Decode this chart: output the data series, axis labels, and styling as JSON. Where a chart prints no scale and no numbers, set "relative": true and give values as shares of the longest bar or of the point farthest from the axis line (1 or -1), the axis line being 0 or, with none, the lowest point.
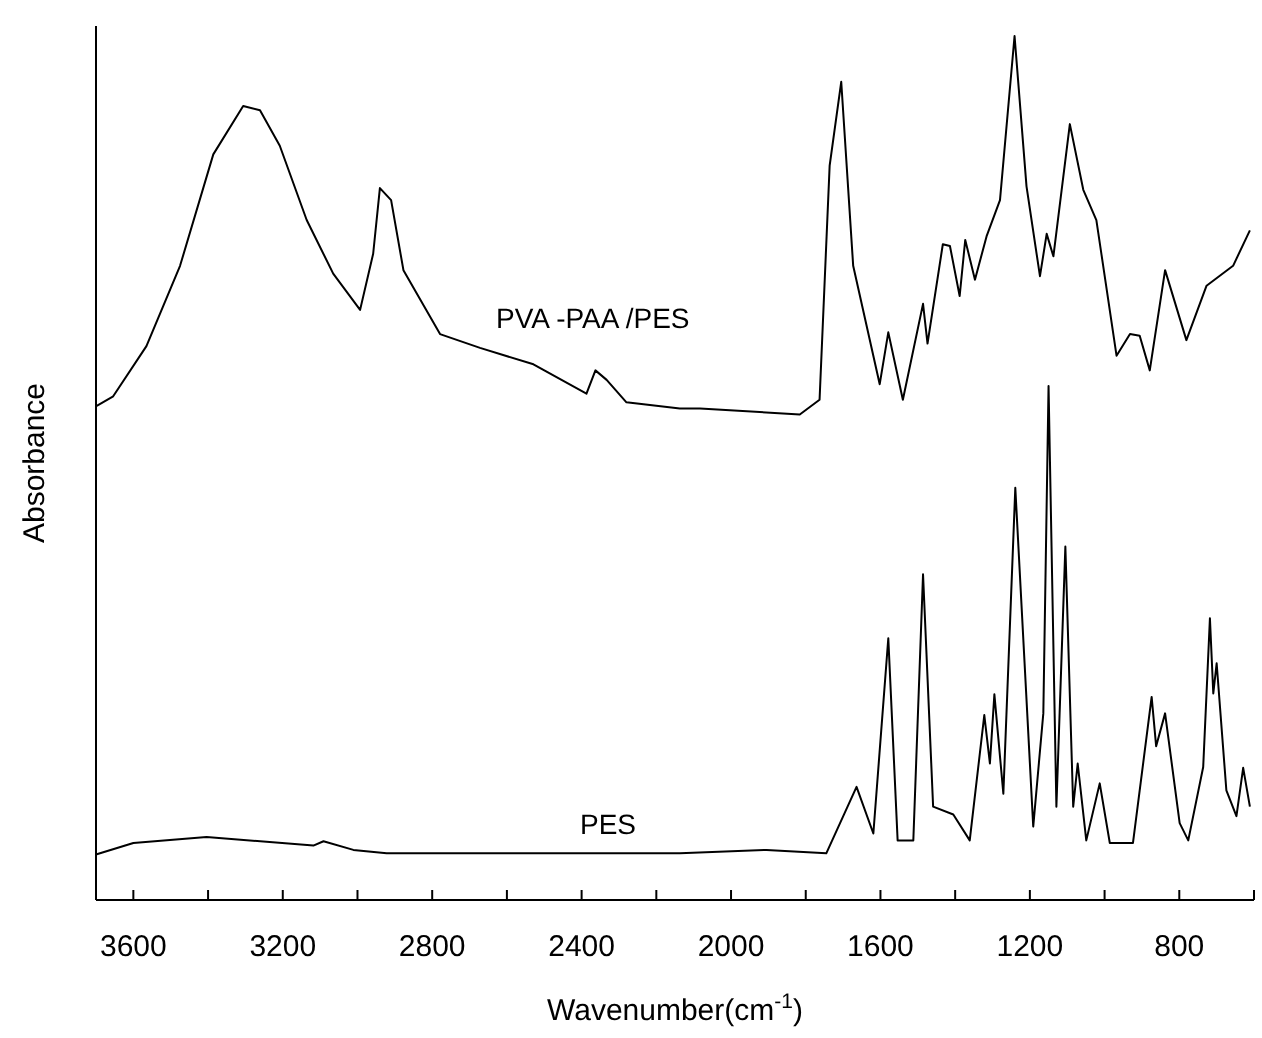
{
  "chart_data": {
    "type": "line",
    "relative": true,
    "xlabel": "Wavenumber(cm$^{-1}$)",
    "ylabel": "Absorbance",
    "xlim": [
      3700,
      600
    ],
    "xticks": [
      3600,
      {
        "value": 3400,
        "label": null
      },
      3200,
      {
        "value": 3000,
        "label": null
      },
      2800,
      {
        "value": 2600,
        "label": null
      },
      2400,
      {
        "value": 2200,
        "label": null
      },
      2000,
      {
        "value": 1800,
        "label": null
      },
      1600,
      {
        "value": 1400,
        "label": null
      },
      1200,
      {
        "value": 1000,
        "label": null
      },
      800,
      {
        "value": 600,
        "label": null
      }
    ],
    "grid": false,
    "marker": "none",
    "line_style": "solid",
    "series": [
      {
        "name": "PVA -PAA /PES",
        "color": "#000000",
        "x": [
          3698,
          3654,
          3565,
          3475,
          3386,
          3306,
          3261,
          3208,
          3136,
          3065,
          2993,
          2958,
          2940,
          2910,
          2877,
          2779,
          2672,
          2529,
          2387,
          2363,
          2333,
          2280,
          2137,
          2083,
          1816,
          1763,
          1736,
          1705,
          1673,
          1602,
          1579,
          1540,
          1486,
          1474,
          1433,
          1414,
          1388,
          1373,
          1347,
          1316,
          1280,
          1241,
          1209,
          1173,
          1155,
          1137,
          1093,
          1057,
          1022,
          968,
          932,
          906,
          879,
          838,
          781,
          727,
          656,
          611
        ],
        "values": [
          0.572,
          0.583,
          0.641,
          0.734,
          0.863,
          0.919,
          0.914,
          0.873,
          0.787,
          0.725,
          0.683,
          0.748,
          0.824,
          0.81,
          0.729,
          0.655,
          0.639,
          0.62,
          0.586,
          0.613,
          0.602,
          0.576,
          0.569,
          0.569,
          0.562,
          0.579,
          0.85,
          0.947,
          0.734,
          0.597,
          0.657,
          0.579,
          0.69,
          0.644,
          0.759,
          0.757,
          0.699,
          0.764,
          0.718,
          0.768,
          0.81,
          1.0,
          0.826,
          0.722,
          0.771,
          0.745,
          0.898,
          0.822,
          0.787,
          0.63,
          0.655,
          0.653,
          0.613,
          0.729,
          0.648,
          0.711,
          0.734,
          0.775
        ]
      },
      {
        "name": "PES",
        "color": "#000000",
        "x": [
          3698,
          3600,
          3404,
          3118,
          3091,
          3011,
          2922,
          2851,
          2137,
          1905,
          1745,
          1664,
          1619,
          1579,
          1554,
          1512,
          1486,
          1459,
          1405,
          1361,
          1322,
          1307,
          1295,
          1271,
          1239,
          1191,
          1164,
          1150,
          1129,
          1105,
          1084,
          1072,
          1049,
          1013,
          986,
          924,
          874,
          862,
          838,
          799,
          776,
          736,
          718,
          709,
          700,
          674,
          647,
          629,
          611
        ],
        "values": [
          0.053,
          0.066,
          0.073,
          0.063,
          0.068,
          0.058,
          0.054,
          0.054,
          0.054,
          0.058,
          0.054,
          0.131,
          0.077,
          0.303,
          0.069,
          0.069,
          0.377,
          0.108,
          0.099,
          0.069,
          0.214,
          0.158,
          0.238,
          0.123,
          0.477,
          0.085,
          0.216,
          0.595,
          0.108,
          0.409,
          0.108,
          0.158,
          0.069,
          0.135,
          0.066,
          0.066,
          0.235,
          0.178,
          0.216,
          0.089,
          0.069,
          0.154,
          0.326,
          0.239,
          0.274,
          0.127,
          0.097,
          0.153,
          0.108
        ]
      }
    ]
  }
}
